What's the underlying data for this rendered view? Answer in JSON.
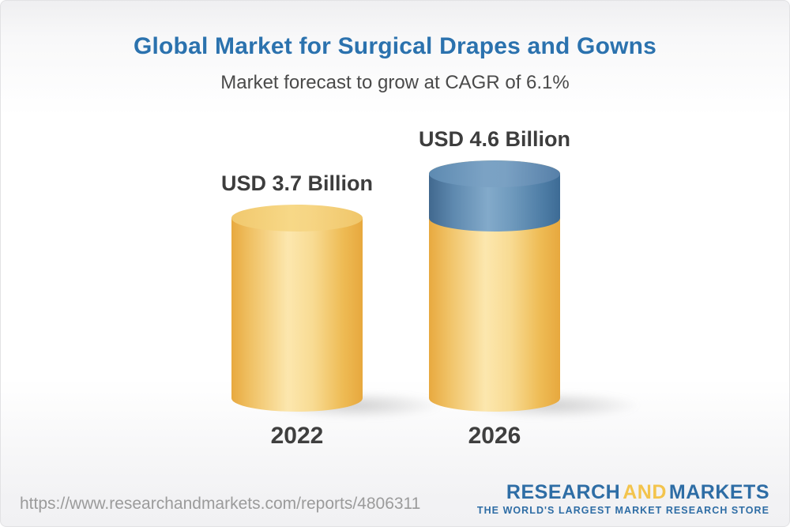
{
  "header": {
    "title": "Global Market for Surgical Drapes and Gowns",
    "subtitle": "Market forecast to grow at CAGR of 6.1%"
  },
  "chart_data": {
    "type": "bar",
    "subtype": "3d-cylinder",
    "title": "Global Market for Surgical Drapes and Gowns",
    "subtitle": "Market forecast to grow at CAGR of 6.1%",
    "cagr_percent": 6.1,
    "unit": "USD Billion",
    "categories": [
      "2022",
      "2026"
    ],
    "values": [
      3.7,
      4.6
    ],
    "bars": [
      {
        "category": "2022",
        "value": 3.7,
        "label": "USD 3.7 Billion",
        "segments": [
          {
            "name": "base",
            "value": 3.7,
            "color": "#f0c05a"
          }
        ]
      },
      {
        "category": "2026",
        "value": 4.6,
        "label": "USD 4.6 Billion",
        "segments": [
          {
            "name": "base",
            "value": 3.7,
            "color": "#f0c05a"
          },
          {
            "name": "growth",
            "value": 0.9,
            "color": "#5585ad"
          }
        ]
      }
    ],
    "legend": false,
    "axes_shown": false
  },
  "footer": {
    "url": "https://www.researchandmarkets.com/reports/4806311",
    "logo": {
      "word1": "RESEARCH",
      "word2": "AND",
      "word3": "MARKETS",
      "tagline": "THE WORLD'S LARGEST MARKET RESEARCH STORE"
    }
  },
  "colors": {
    "title_blue": "#2b72ae",
    "text_dark": "#3f3f3f",
    "bar_yellow_edge": "#e8a93f",
    "bar_yellow_light": "#fce7ae",
    "bar_blue_edge": "#41688e",
    "bar_blue_light": "#83aaca",
    "logo_blue": "#2e6da5",
    "logo_yellow": "#f3c44d",
    "url_gray": "#9b9b9b"
  }
}
